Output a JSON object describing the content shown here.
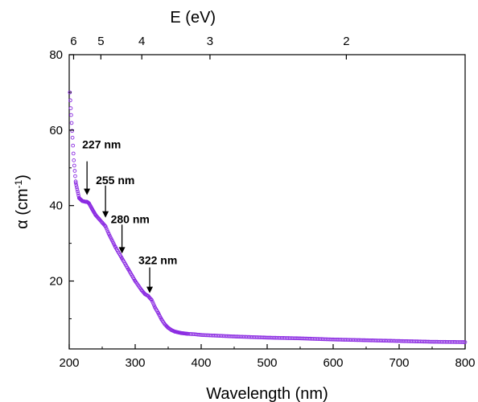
{
  "chart_data": {
    "type": "scatter",
    "xlabel": "Wavelength (nm)",
    "ylabel_main": "α (cm",
    "ylabel_sup": "-1",
    "ylabel_close": ")",
    "top_label": "E (eV)",
    "xlim": [
      200,
      800
    ],
    "ylim": [
      2,
      80
    ],
    "x_ticks": [
      200,
      300,
      400,
      500,
      600,
      700,
      800
    ],
    "y_ticks": [
      20,
      40,
      60,
      80
    ],
    "top_ticks": [
      6,
      5,
      4,
      3,
      2
    ],
    "grid": false,
    "marker_color": "#8b2be2",
    "series": [
      {
        "x": [
          201,
          203,
          205,
          207,
          210,
          215,
          220,
          225,
          227,
          230,
          235,
          240,
          245,
          250,
          255,
          260,
          270,
          280,
          290,
          300,
          310,
          315,
          320,
          322,
          325,
          330,
          335,
          340,
          345,
          350,
          355,
          360,
          365,
          370,
          380,
          390,
          400,
          450,
          500,
          550,
          600,
          650,
          700,
          750,
          800
        ],
        "values": [
          70,
          64,
          58,
          52,
          46,
          42,
          41.2,
          41,
          41,
          40.6,
          39,
          37.5,
          36.5,
          35.5,
          34.5,
          32.5,
          29,
          26,
          23,
          20,
          17.5,
          16.5,
          16,
          15.5,
          15,
          13,
          11.5,
          9.8,
          8.5,
          7.6,
          7.0,
          6.6,
          6.4,
          6.2,
          6.0,
          5.9,
          5.7,
          5.3,
          5.0,
          4.8,
          4.5,
          4.3,
          4.1,
          3.9,
          3.8
        ]
      }
    ],
    "annotations": [
      {
        "text": "227 nm",
        "x": 227,
        "y": 41.5
      },
      {
        "text": "255 nm",
        "x": 255,
        "y": 35.5
      },
      {
        "text": "280 nm",
        "x": 280,
        "y": 26
      },
      {
        "text": "322 nm",
        "x": 322,
        "y": 15.5
      }
    ]
  }
}
